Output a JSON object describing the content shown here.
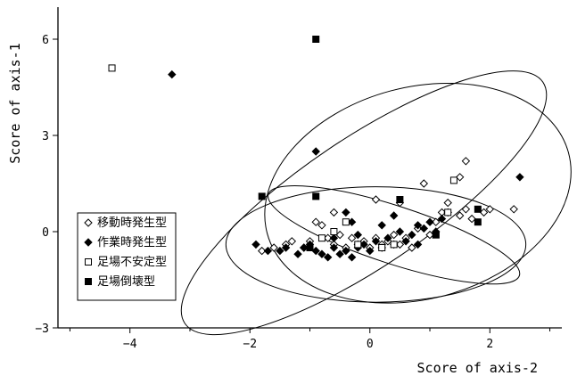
{
  "chart_data": {
    "type": "scatter",
    "title": "",
    "xlabel": "Score of axis-2",
    "ylabel": "Score of axis-1",
    "xlim": [
      -5.2,
      3.2
    ],
    "ylim": [
      -3.0,
      7.0
    ],
    "xticks": [
      -4,
      -2,
      0,
      2
    ],
    "yticks": [
      -3,
      0,
      3,
      6
    ],
    "xtick_labels": [
      "−4",
      "−2",
      "0",
      "2"
    ],
    "ytick_labels": [
      "−3",
      "0",
      "3",
      "6"
    ],
    "grid": false,
    "legend_position": "left-middle",
    "series": [
      {
        "name": "移動時発生型",
        "marker": "open-diamond",
        "points": [
          [
            -1.8,
            -0.6
          ],
          [
            -1.6,
            -0.5
          ],
          [
            -1.4,
            -0.4
          ],
          [
            -1.3,
            -0.3
          ],
          [
            -1.1,
            -0.5
          ],
          [
            -0.9,
            0.3
          ],
          [
            -0.8,
            0.2
          ],
          [
            -0.7,
            -0.2
          ],
          [
            -0.6,
            -0.4
          ],
          [
            -0.5,
            -0.1
          ],
          [
            -0.4,
            -0.5
          ],
          [
            -0.3,
            -0.2
          ],
          [
            -0.2,
            -0.4
          ],
          [
            -0.1,
            -0.3
          ],
          [
            0.0,
            -0.5
          ],
          [
            0.1,
            -0.2
          ],
          [
            0.2,
            -0.4
          ],
          [
            0.3,
            -0.3
          ],
          [
            0.4,
            -0.1
          ],
          [
            0.5,
            -0.4
          ],
          [
            0.6,
            -0.2
          ],
          [
            0.8,
            0.1
          ],
          [
            1.0,
            -0.1
          ],
          [
            1.1,
            0.3
          ],
          [
            1.2,
            0.6
          ],
          [
            1.3,
            0.9
          ],
          [
            1.5,
            0.5
          ],
          [
            1.6,
            0.7
          ],
          [
            1.7,
            0.4
          ],
          [
            1.9,
            0.6
          ],
          [
            2.0,
            0.7
          ],
          [
            1.6,
            2.2
          ],
          [
            1.5,
            1.7
          ],
          [
            0.9,
            1.5
          ],
          [
            0.1,
            1.0
          ],
          [
            0.5,
            0.9
          ],
          [
            2.4,
            0.7
          ],
          [
            -0.6,
            0.6
          ],
          [
            -1.0,
            -0.3
          ],
          [
            0.7,
            -0.5
          ]
        ]
      },
      {
        "name": "作業時発生型",
        "marker": "filled-diamond",
        "points": [
          [
            -3.3,
            4.9
          ],
          [
            -0.9,
            2.5
          ],
          [
            2.5,
            1.7
          ],
          [
            -1.9,
            -0.4
          ],
          [
            -1.7,
            -0.6
          ],
          [
            -1.5,
            -0.6
          ],
          [
            -1.4,
            -0.5
          ],
          [
            -1.2,
            -0.7
          ],
          [
            -1.0,
            -0.4
          ],
          [
            -0.9,
            -0.6
          ],
          [
            -0.8,
            -0.7
          ],
          [
            -0.7,
            -0.8
          ],
          [
            -0.6,
            -0.5
          ],
          [
            -0.5,
            -0.7
          ],
          [
            -0.4,
            -0.6
          ],
          [
            -0.3,
            -0.8
          ],
          [
            -0.2,
            -0.5
          ],
          [
            -0.1,
            -0.4
          ],
          [
            0.0,
            -0.6
          ],
          [
            0.1,
            -0.3
          ],
          [
            0.2,
            -0.5
          ],
          [
            0.3,
            -0.2
          ],
          [
            0.4,
            -0.4
          ],
          [
            0.5,
            0.0
          ],
          [
            0.6,
            -0.3
          ],
          [
            0.7,
            -0.1
          ],
          [
            0.8,
            0.2
          ],
          [
            0.9,
            0.1
          ],
          [
            1.0,
            0.3
          ],
          [
            1.1,
            0.0
          ],
          [
            1.3,
            0.6
          ],
          [
            0.4,
            0.5
          ],
          [
            -0.4,
            0.6
          ],
          [
            -0.2,
            -0.1
          ],
          [
            0.2,
            0.2
          ],
          [
            -0.6,
            -0.2
          ],
          [
            -1.1,
            -0.5
          ],
          [
            0.8,
            -0.4
          ],
          [
            -0.3,
            0.3
          ],
          [
            1.2,
            0.4
          ]
        ]
      },
      {
        "name": "足場不安定型",
        "marker": "open-square",
        "points": [
          [
            -4.3,
            5.1
          ],
          [
            1.4,
            1.6
          ],
          [
            1.3,
            0.6
          ],
          [
            -0.8,
            -0.2
          ],
          [
            -0.4,
            0.3
          ],
          [
            -0.2,
            -0.4
          ],
          [
            0.4,
            -0.4
          ],
          [
            1.1,
            -0.1
          ],
          [
            -0.6,
            0.0
          ],
          [
            0.2,
            -0.5
          ]
        ]
      },
      {
        "name": "足場倒壊型",
        "marker": "filled-square",
        "points": [
          [
            -0.9,
            6.0
          ],
          [
            -1.8,
            1.1
          ],
          [
            -0.9,
            1.1
          ],
          [
            0.5,
            1.0
          ],
          [
            1.8,
            0.7
          ],
          [
            1.8,
            0.3
          ],
          [
            -1.0,
            -0.5
          ],
          [
            1.1,
            -0.1
          ]
        ]
      }
    ],
    "ellipses": [
      {
        "cx": -0.1,
        "cy": 0.9,
        "rx": 3.6,
        "ry": 2.0,
        "angle_deg": -34
      },
      {
        "cx": 0.8,
        "cy": 1.2,
        "rx": 2.6,
        "ry": 3.3,
        "angle_deg": -15
      },
      {
        "cx": 0.4,
        "cy": -0.1,
        "rx": 2.2,
        "ry": 0.9,
        "angle_deg": 18
      },
      {
        "cx": 0.1,
        "cy": -0.4,
        "rx": 2.5,
        "ry": 1.8,
        "angle_deg": 0
      }
    ]
  }
}
